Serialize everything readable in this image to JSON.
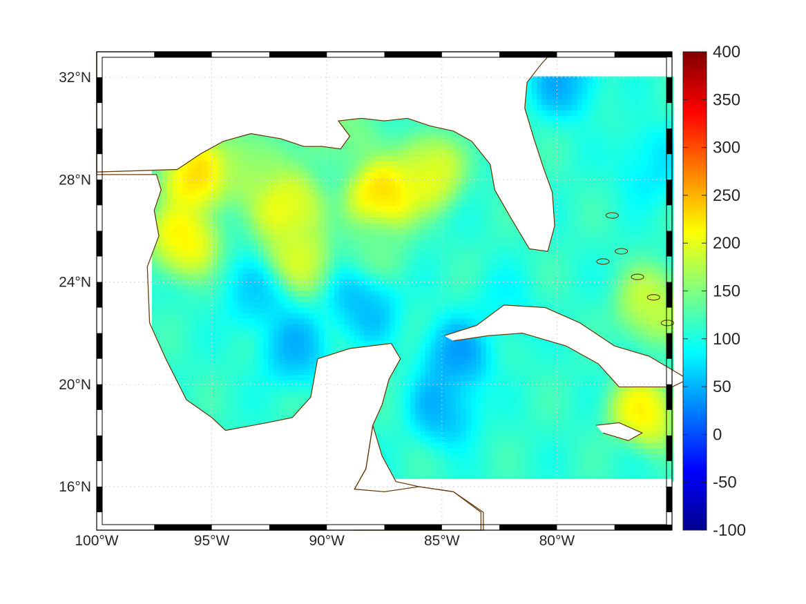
{
  "chart_data": {
    "type": "heatmap",
    "title": "",
    "xlabel": "",
    "ylabel": "",
    "region": "Gulf of Mexico and western Caribbean",
    "xlim": [
      -100,
      -75
    ],
    "ylim": [
      14.3,
      33
    ],
    "lon_ticks": [
      -100,
      -95,
      -90,
      -85,
      -80
    ],
    "lon_tick_labels": [
      "100°W",
      "95°W",
      "90°W",
      "85°W",
      "80°W"
    ],
    "lat_ticks": [
      16,
      20,
      24,
      28,
      32
    ],
    "lat_tick_labels": [
      "16°N",
      "20°N",
      "24°N",
      "28°N",
      "32°N"
    ],
    "grid": true,
    "colormap": "jet",
    "colorbar": {
      "range": [
        -100,
        400
      ],
      "ticks": [
        400,
        350,
        300,
        250,
        200,
        150,
        100,
        50,
        0,
        -50,
        -100
      ],
      "tick_labels": [
        "400",
        "350",
        "300",
        "250",
        "200",
        "150",
        "100",
        "50",
        "0",
        "-50",
        "-100"
      ]
    },
    "field": {
      "background": 110,
      "features": [
        {
          "lon": -87.7,
          "lat": 27.2,
          "value": 265
        },
        {
          "lon": -95.8,
          "lat": 28.0,
          "value": 255
        },
        {
          "lon": -96.3,
          "lat": 25.6,
          "value": 240
        },
        {
          "lon": -91.8,
          "lat": 26.8,
          "value": 235
        },
        {
          "lon": -85.7,
          "lat": 28.2,
          "value": 225
        },
        {
          "lon": -91.4,
          "lat": 24.9,
          "value": 205
        },
        {
          "lon": -89.5,
          "lat": 29.6,
          "value": 160
        },
        {
          "lon": -93.5,
          "lat": 28.4,
          "value": 185
        },
        {
          "lon": -76.0,
          "lat": 23.0,
          "value": 200
        },
        {
          "lon": -76.4,
          "lat": 18.7,
          "value": 235
        },
        {
          "lon": -88.0,
          "lat": 25.3,
          "value": 140
        },
        {
          "lon": -88.5,
          "lat": 23.0,
          "value": 45
        },
        {
          "lon": -93.0,
          "lat": 23.3,
          "value": 60
        },
        {
          "lon": -91.5,
          "lat": 21.3,
          "value": 45
        },
        {
          "lon": -84.5,
          "lat": 21.0,
          "value": 30
        },
        {
          "lon": -85.0,
          "lat": 19.0,
          "value": 40
        },
        {
          "lon": -79.8,
          "lat": 31.8,
          "value": 40
        },
        {
          "lon": -76.0,
          "lat": 28.5,
          "value": 70
        },
        {
          "lon": -82.5,
          "lat": 22.8,
          "value": 85
        },
        {
          "lon": -77.5,
          "lat": 16.8,
          "value": 110
        }
      ]
    }
  },
  "colors": {
    "coastline": "#6a3d0a",
    "grid": "#d0d0d0",
    "land": "#ffffff"
  }
}
